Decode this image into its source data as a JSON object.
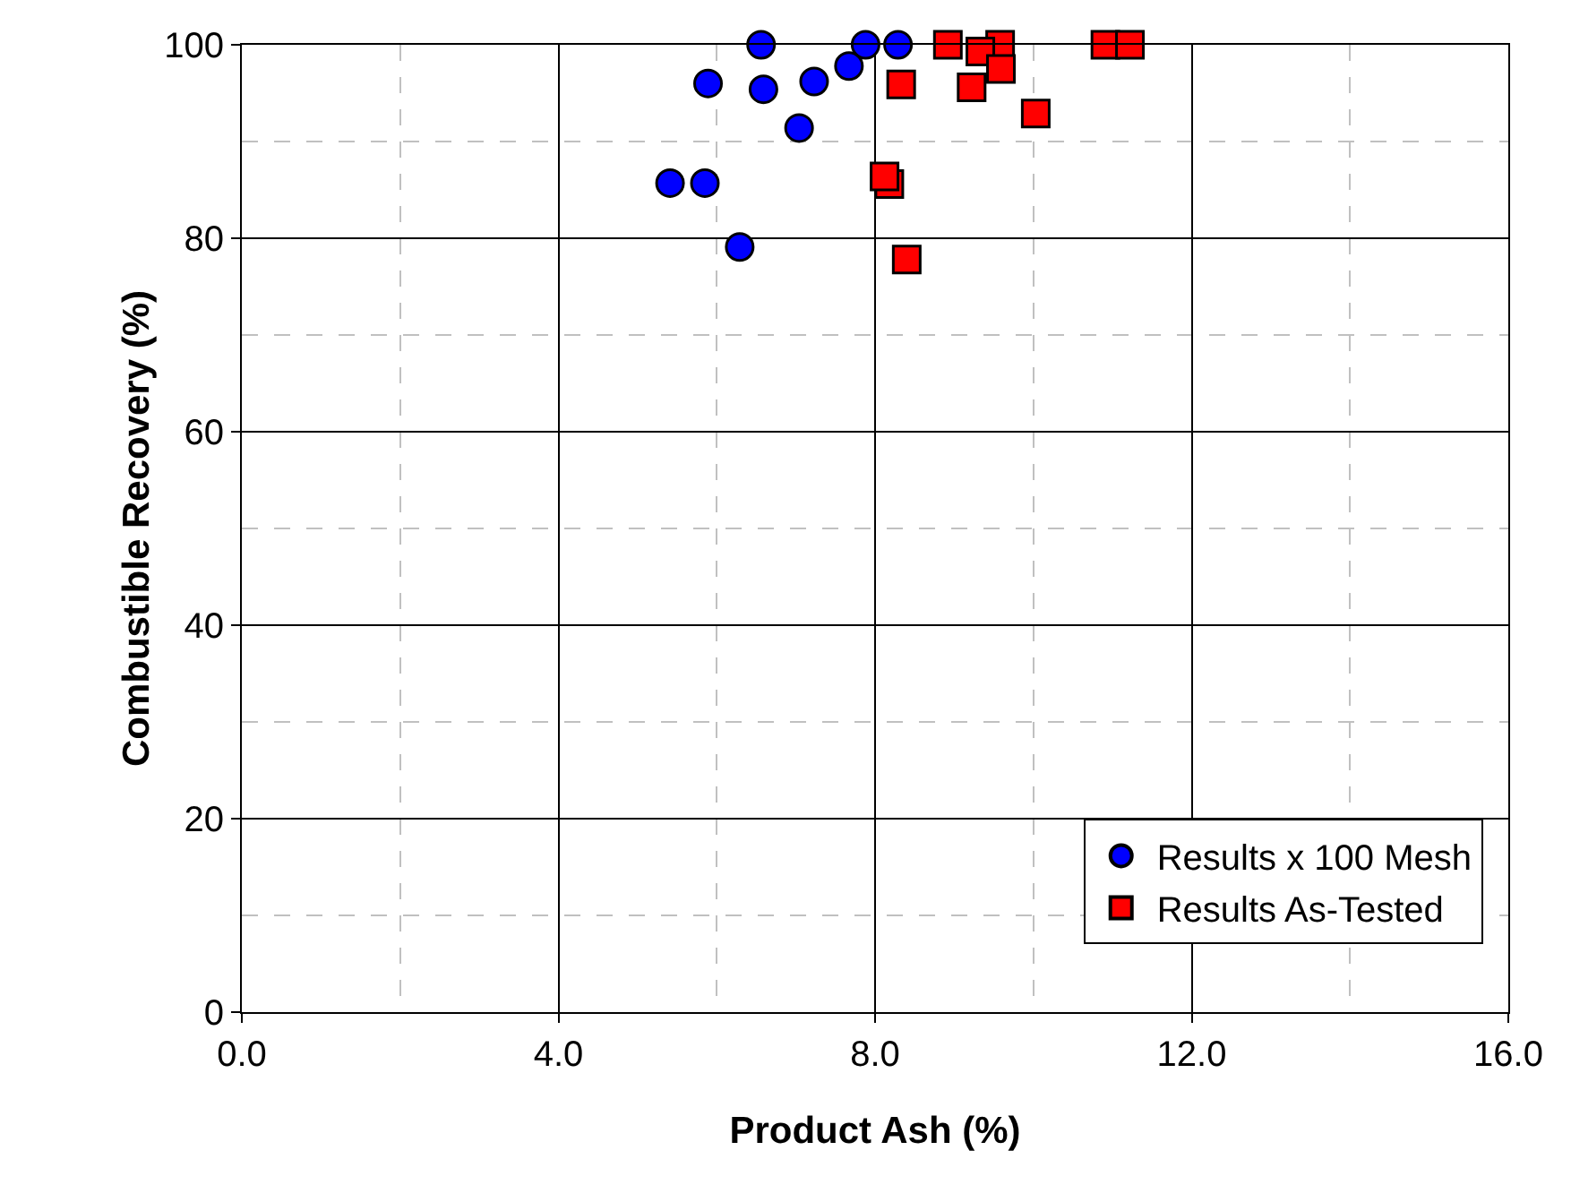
{
  "chart_data": {
    "type": "scatter",
    "xlabel": "Product Ash (%)",
    "ylabel": "Combustible Recovery (%)",
    "xlim": [
      0,
      16
    ],
    "ylim": [
      0,
      100
    ],
    "xticks": [
      {
        "value": 0,
        "label": "0.0"
      },
      {
        "value": 4,
        "label": "4.0"
      },
      {
        "value": 8,
        "label": "8.0"
      },
      {
        "value": 12,
        "label": "12.0"
      },
      {
        "value": 16,
        "label": "16.0"
      }
    ],
    "yticks": [
      0,
      20,
      40,
      60,
      80,
      100
    ],
    "grid": true,
    "legend": "bottom right",
    "series": [
      {
        "name": "Results x 100 Mesh",
        "color": "#0000ff",
        "marker": "circle",
        "x": [
          6.56,
          5.89,
          6.59,
          7.23,
          7.67,
          7.88,
          8.29,
          7.04,
          5.41,
          5.85,
          6.29
        ],
        "values": [
          100,
          96.0,
          95.4,
          96.2,
          97.8,
          100,
          100,
          91.4,
          85.7,
          85.7,
          79.1
        ]
      },
      {
        "name": "Results As-Tested",
        "color": "#ff0000",
        "marker": "square",
        "x": [
          8.92,
          9.58,
          9.33,
          9.59,
          8.33,
          9.22,
          10.03,
          8.18,
          8.12,
          8.4,
          10.91,
          11.22
        ],
        "values": [
          100,
          100,
          99.3,
          97.5,
          95.9,
          95.6,
          92.9,
          85.6,
          86.4,
          77.8,
          100,
          100
        ]
      }
    ]
  }
}
